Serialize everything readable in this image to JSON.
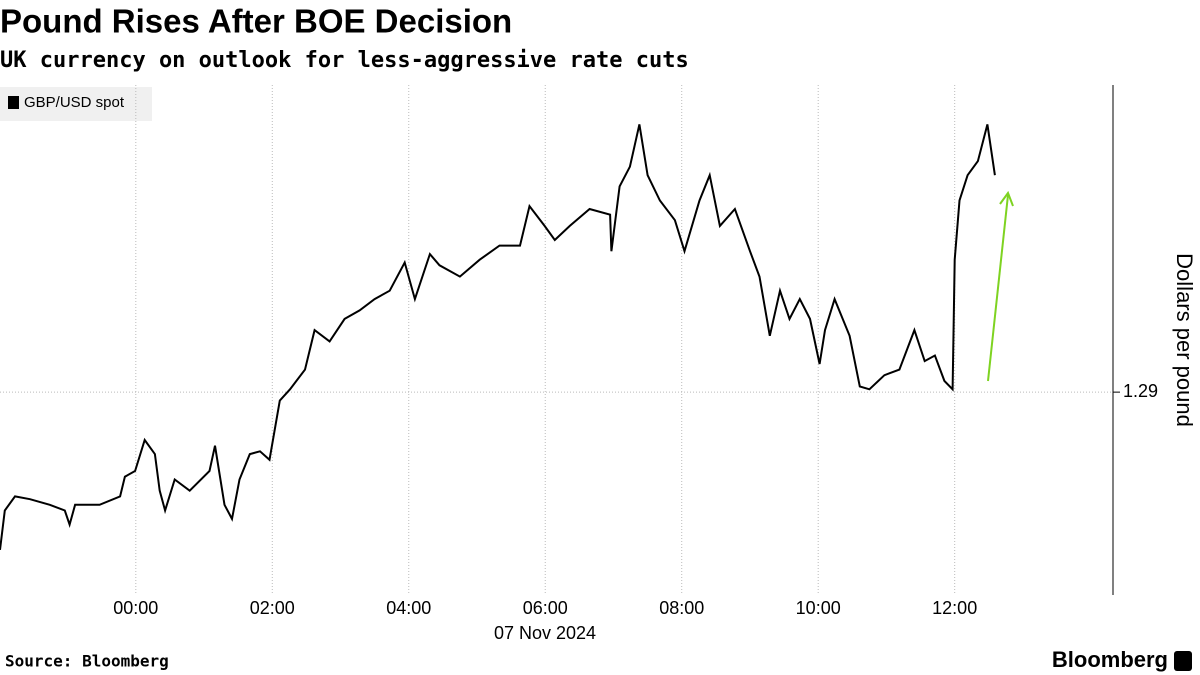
{
  "chart_data": {
    "type": "line",
    "title": "Pound Rises After BOE Decision",
    "subtitle": "UK currency on outlook for less-aggressive rate cuts",
    "ylabel": "Dollars per pound",
    "xlabel": "07 Nov 2024",
    "source": "Source: Bloomberg",
    "brand": "Bloomberg",
    "x": [
      -1.99,
      -1.92,
      -1.77,
      -1.55,
      -1.26,
      -1.04,
      -0.97,
      -0.89,
      -0.53,
      -0.23,
      -0.16,
      -0.01,
      0.13,
      0.28,
      0.35,
      0.43,
      0.57,
      0.79,
      1.08,
      1.16,
      1.3,
      1.41,
      1.52,
      1.67,
      1.82,
      1.96,
      2.11,
      2.26,
      2.48,
      2.62,
      2.84,
      3.06,
      3.28,
      3.5,
      3.72,
      3.94,
      4.09,
      4.31,
      4.45,
      4.75,
      5.04,
      5.33,
      5.63,
      5.77,
      5.99,
      6.14,
      6.36,
      6.65,
      6.95,
      6.97,
      7.09,
      7.24,
      7.38,
      7.5,
      7.68,
      7.9,
      8.04,
      8.26,
      8.41,
      8.56,
      8.78,
      9.0,
      9.14,
      9.29,
      9.44,
      9.58,
      9.73,
      9.88,
      10.02,
      10.1,
      10.24,
      10.46,
      10.61,
      10.75,
      10.97,
      11.19,
      11.41,
      11.56,
      11.71,
      11.85,
      11.97,
      12.0,
      12.07,
      12.19,
      12.34,
      12.48,
      12.59
    ],
    "series": [
      {
        "name": "GBP/USD spot",
        "color": "#000000",
        "values": [
          1.2844,
          1.2858,
          1.2863,
          1.2862,
          1.286,
          1.2858,
          1.2853,
          1.286,
          1.286,
          1.2863,
          1.287,
          1.2872,
          1.2883,
          1.2878,
          1.2865,
          1.2858,
          1.2869,
          1.2865,
          1.2872,
          1.2881,
          1.286,
          1.2855,
          1.2869,
          1.2878,
          1.2879,
          1.2876,
          1.2897,
          1.2901,
          1.2908,
          1.2922,
          1.2918,
          1.2926,
          1.2929,
          1.2933,
          1.2936,
          1.2946,
          1.2933,
          1.2949,
          1.2945,
          1.2941,
          1.2947,
          1.2952,
          1.2952,
          1.2966,
          1.2959,
          1.2954,
          1.2959,
          1.2965,
          1.2963,
          1.295,
          1.2973,
          1.298,
          1.2995,
          1.2977,
          1.2968,
          1.2961,
          1.295,
          1.2968,
          1.2977,
          1.2959,
          1.2965,
          1.295,
          1.2941,
          1.292,
          1.2936,
          1.2926,
          1.2933,
          1.2926,
          1.291,
          1.2922,
          1.2933,
          1.292,
          1.2902,
          1.2901,
          1.2906,
          1.2908,
          1.2922,
          1.2911,
          1.2913,
          1.2904,
          1.2901,
          1.2947,
          1.2968,
          1.2977,
          1.2982,
          1.2995,
          1.2977
        ]
      }
    ],
    "xlim": [
      -1.99,
      14.32
    ],
    "xticks": [
      {
        "value": 0,
        "label": "00:00"
      },
      {
        "value": 2,
        "label": "02:00"
      },
      {
        "value": 4,
        "label": "04:00"
      },
      {
        "value": 6,
        "label": "06:00"
      },
      {
        "value": 8,
        "label": "08:00"
      },
      {
        "value": 10,
        "label": "10:00"
      },
      {
        "value": 12,
        "label": "12:00"
      }
    ],
    "ylim": [
      1.2828,
      1.3009
    ],
    "yticks": [
      1.29
    ],
    "grid": true
  }
}
